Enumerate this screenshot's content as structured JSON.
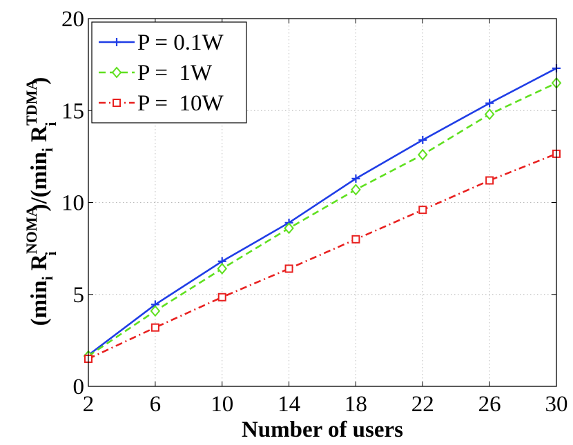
{
  "chart_data": {
    "type": "line",
    "xlabel": "Number of users",
    "ylabel_parts": {
      "open": "(min",
      "sub_i1": "i",
      "R1": " R",
      "sup1": "NOMA",
      "sub_i2": "i",
      "mid": ")/(min",
      "sub_i3": "i",
      "R2": " R",
      "sup2": "TDMA",
      "sub_i4": "i",
      "close": ")"
    },
    "xlim": [
      2,
      30
    ],
    "ylim": [
      0,
      20
    ],
    "xticks": [
      2,
      6,
      10,
      14,
      18,
      22,
      26,
      30
    ],
    "yticks": [
      0,
      5,
      10,
      15,
      20
    ],
    "grid": true,
    "legend_position": "top-left",
    "x": [
      2,
      6,
      10,
      14,
      18,
      22,
      26,
      30
    ],
    "series": [
      {
        "name": "P = 0.1W",
        "color": "#1f3de6",
        "dash": "solid",
        "marker": "plus",
        "values": [
          1.7,
          4.45,
          6.8,
          8.9,
          11.3,
          13.4,
          15.4,
          17.3
        ]
      },
      {
        "name": "P =  1W",
        "color": "#5fe01f",
        "dash": "dashed",
        "marker": "diamond",
        "values": [
          1.65,
          4.1,
          6.4,
          8.6,
          10.7,
          12.6,
          14.8,
          16.5
        ]
      },
      {
        "name": "P =  10W",
        "color": "#e8201f",
        "dash": "dashdot",
        "marker": "square",
        "values": [
          1.5,
          3.2,
          4.85,
          6.4,
          8.0,
          9.6,
          11.2,
          12.65
        ]
      }
    ]
  }
}
